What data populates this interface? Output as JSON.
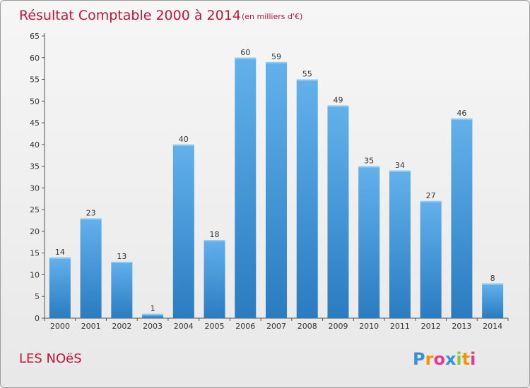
{
  "chart_data": {
    "type": "bar",
    "title": "Résultat Comptable 2000 à 2014",
    "unit_note": "(en milliers d'€)",
    "categories": [
      "2000",
      "2001",
      "2002",
      "2003",
      "2004",
      "2005",
      "2006",
      "2007",
      "2008",
      "2009",
      "2010",
      "2011",
      "2012",
      "2013",
      "2014"
    ],
    "values": [
      14,
      23,
      13,
      1,
      40,
      18,
      60,
      59,
      55,
      49,
      35,
      34,
      27,
      46,
      8
    ],
    "ylim": [
      0,
      65
    ],
    "yticks": [
      0,
      5,
      10,
      15,
      20,
      25,
      30,
      35,
      40,
      45,
      50,
      55,
      60,
      65
    ],
    "grid": false,
    "xlabel": "",
    "ylabel": ""
  },
  "commune": "LES NOëS",
  "brand": {
    "letters": [
      "P",
      "r",
      "o",
      "x",
      "i",
      "t",
      "i"
    ],
    "colors": [
      "#3a8fd8",
      "#f29400",
      "#e63a8a",
      "#3a8fd8",
      "#8cc63f",
      "#f29400",
      "#e63a8a"
    ]
  },
  "colors": {
    "bar_light": "#62b1ec",
    "bar_dark": "#2a7cc0",
    "title": "#c0143c",
    "axis": "#555555"
  }
}
